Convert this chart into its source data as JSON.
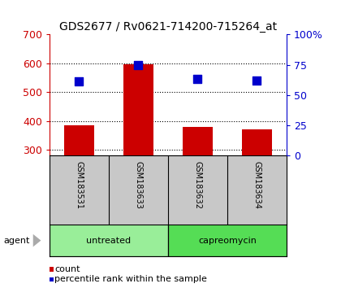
{
  "title": "GDS2677 / Rv0621-714200-715264_at",
  "samples": [
    "GSM183531",
    "GSM183633",
    "GSM183632",
    "GSM183634"
  ],
  "groups": [
    "untreated",
    "untreated",
    "capreomycin",
    "capreomycin"
  ],
  "counts": [
    385,
    598,
    380,
    372
  ],
  "percentile_ranks": [
    61,
    75,
    63,
    62
  ],
  "ylim_left": [
    280,
    700
  ],
  "ylim_right": [
    0,
    100
  ],
  "yticks_left": [
    300,
    400,
    500,
    600,
    700
  ],
  "yticks_right": [
    0,
    25,
    50,
    75,
    100
  ],
  "bar_color": "#cc0000",
  "dot_color": "#0000cc",
  "group_colors": {
    "untreated": "#99ee99",
    "capreomycin": "#55dd55"
  },
  "sample_bg_color": "#c8c8c8",
  "plot_bg_color": "#ffffff",
  "left_axis_color": "#cc0000",
  "right_axis_color": "#0000cc",
  "agent_label": "agent",
  "legend_count_label": "count",
  "legend_pct_label": "percentile rank within the sample",
  "bar_width": 0.5,
  "dot_size": 45,
  "title_fontsize": 10,
  "tick_fontsize": 9,
  "sample_fontsize": 7,
  "group_fontsize": 8,
  "legend_fontsize": 8
}
